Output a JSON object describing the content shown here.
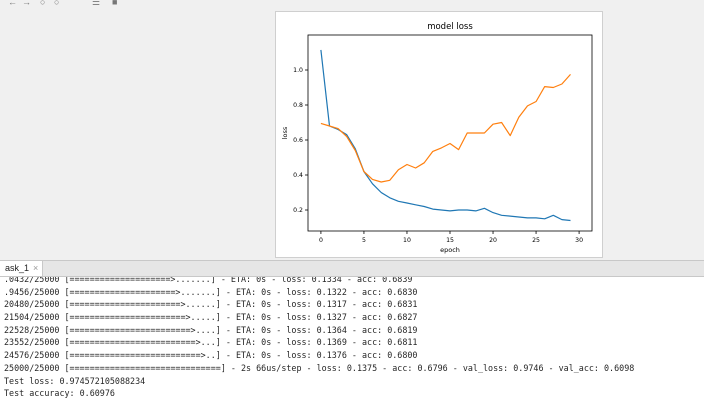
{
  "toolbar": {
    "icons": [
      "back-icon",
      "forward-icon",
      "pan-icon",
      "zoom-icon",
      "configure-icon",
      "save-icon"
    ]
  },
  "figure": {
    "chart_data": {
      "type": "line",
      "title": "model loss",
      "xlabel": "epoch",
      "ylabel": "loss",
      "xlim": [
        -1.5,
        31.5
      ],
      "ylim": [
        0.08,
        1.2
      ],
      "xticks": [
        0,
        5,
        10,
        15,
        20,
        25,
        30
      ],
      "yticks": [
        0.2,
        0.4,
        0.6,
        0.8,
        1.0
      ],
      "xtick_labels": [
        "0",
        "5",
        "10",
        "15",
        "20",
        "25",
        "30"
      ],
      "ytick_labels": [
        "0.2",
        "0.4",
        "0.6",
        "0.8",
        "1.0"
      ],
      "grid": false,
      "legend": "none",
      "x": [
        0,
        1,
        2,
        3,
        4,
        5,
        6,
        7,
        8,
        9,
        10,
        11,
        12,
        13,
        14,
        15,
        16,
        17,
        18,
        19,
        20,
        21,
        22,
        23,
        24,
        25,
        26,
        27,
        28,
        29
      ],
      "series": [
        {
          "color": "#1f77b4",
          "values": [
            1.115,
            0.68,
            0.66,
            0.63,
            0.55,
            0.42,
            0.35,
            0.3,
            0.27,
            0.25,
            0.24,
            0.23,
            0.22,
            0.205,
            0.2,
            0.195,
            0.2,
            0.2,
            0.195,
            0.21,
            0.185,
            0.17,
            0.165,
            0.16,
            0.155,
            0.155,
            0.15,
            0.17,
            0.145,
            0.14
          ]
        },
        {
          "color": "#ff7f0e",
          "values": [
            0.695,
            0.68,
            0.665,
            0.62,
            0.54,
            0.42,
            0.375,
            0.36,
            0.37,
            0.43,
            0.46,
            0.44,
            0.47,
            0.535,
            0.555,
            0.58,
            0.545,
            0.64,
            0.64,
            0.64,
            0.69,
            0.7,
            0.625,
            0.73,
            0.795,
            0.82,
            0.905,
            0.9,
            0.92,
            0.975
          ]
        }
      ]
    }
  },
  "console": {
    "tab_label": "ask_1",
    "close_glyph": "×",
    "lines": [
      ".0432/25000 [====================>.......] - ETA: 0s - loss: 0.1334 - acc: 0.6839",
      ".9456/25000 [=====================>.......] - ETA: 0s - loss: 0.1322 - acc: 0.6830",
      "20480/25000 [======================>......] - ETA: 0s - loss: 0.1317 - acc: 0.6831",
      "21504/25000 [=======================>.....] - ETA: 0s - loss: 0.1327 - acc: 0.6827",
      "22528/25000 [========================>....] - ETA: 0s - loss: 0.1364 - acc: 0.6819",
      "23552/25000 [=========================>...] - ETA: 0s - loss: 0.1369 - acc: 0.6811",
      "24576/25000 [==========================>..] - ETA: 0s - loss: 0.1376 - acc: 0.6800",
      "25000/25000 [==============================] - 2s 66us/step - loss: 0.1375 - acc: 0.6796 - val_loss: 0.9746 - val_acc: 0.6098",
      "Test loss: 0.974572105088234",
      "Test accuracy: 0.60976"
    ]
  }
}
